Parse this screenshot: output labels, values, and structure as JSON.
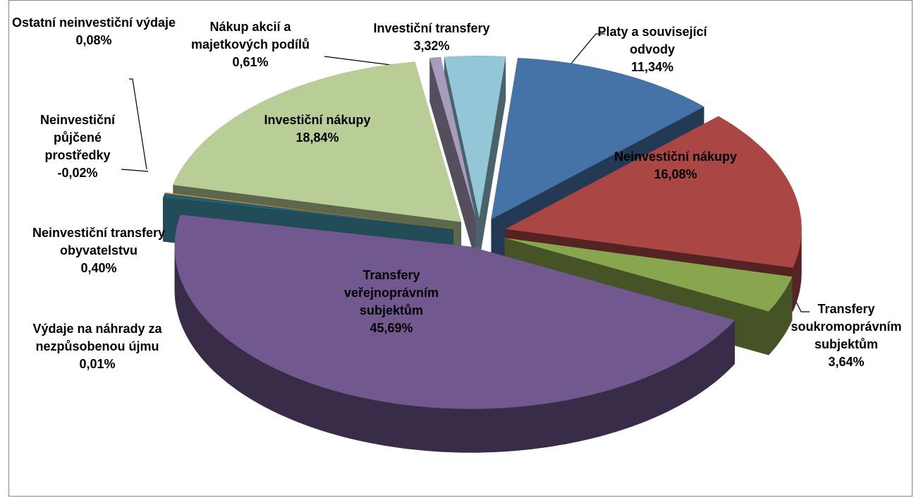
{
  "chart_data": {
    "type": "pie",
    "categories": [
      "Platy a související odvody",
      "Neinvestiční nákupy",
      "Transfery soukromoprávním subjektům",
      "Transfery veřejnoprávním subjektům",
      "Výdaje na náhrady za nezpůsobenou újmu",
      "Neinvestiční transfery obyvatelstvu",
      "Neinvestiční půjčené prostředky",
      "Ostatní neinvestiční výdaje",
      "Investiční nákupy",
      "Nákup akcií a majetkových podílů",
      "Investiční transfery"
    ],
    "values": [
      11.34,
      16.08,
      3.64,
      45.69,
      0.01,
      0.4,
      -0.02,
      0.08,
      18.84,
      0.61,
      3.32
    ],
    "value_labels": [
      "11,34%",
      "16,08%",
      "3,64%",
      "45,69%",
      "0,01%",
      "0,40%",
      "-0,02%",
      "0,08%",
      "18,84%",
      "0,61%",
      "3,32%"
    ],
    "colors": [
      "#4572a7",
      "#aa4643",
      "#89a54e",
      "#71588f",
      "#4198af",
      "#1f5f6e",
      "#db843d",
      "#e0a060",
      "#b9cd96",
      "#a99bbd",
      "#93c6d6"
    ]
  }
}
